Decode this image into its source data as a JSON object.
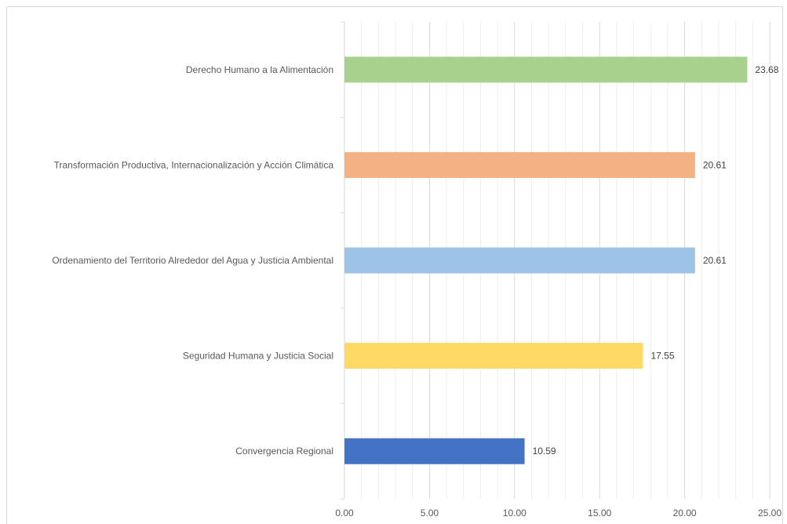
{
  "chart_data": {
    "type": "bar",
    "orientation": "horizontal",
    "title": "",
    "xlabel": "",
    "ylabel": "",
    "categories": [
      "Derecho Humano a la Alimentación",
      "Transformación Productiva, Internacionalización y Acción Climática",
      "Ordenamiento del Territorio Alrededor del Agua y Justicia Ambiental",
      "Seguridad Humana y Justicia Social",
      "Convergencia Regional"
    ],
    "values": [
      23.68,
      20.61,
      20.61,
      17.55,
      10.59
    ],
    "value_labels": [
      "23.68",
      "20.61",
      "20.61",
      "17.55",
      "10.59"
    ],
    "colors": [
      "#a9d18e",
      "#f4b183",
      "#9dc3e6",
      "#ffd966",
      "#4472c4"
    ],
    "xlim": [
      0,
      25
    ],
    "x_ticks": [
      "0.00",
      "5.00",
      "10.00",
      "15.00",
      "20.00",
      "25.00"
    ],
    "grid": true,
    "legend": "none"
  }
}
